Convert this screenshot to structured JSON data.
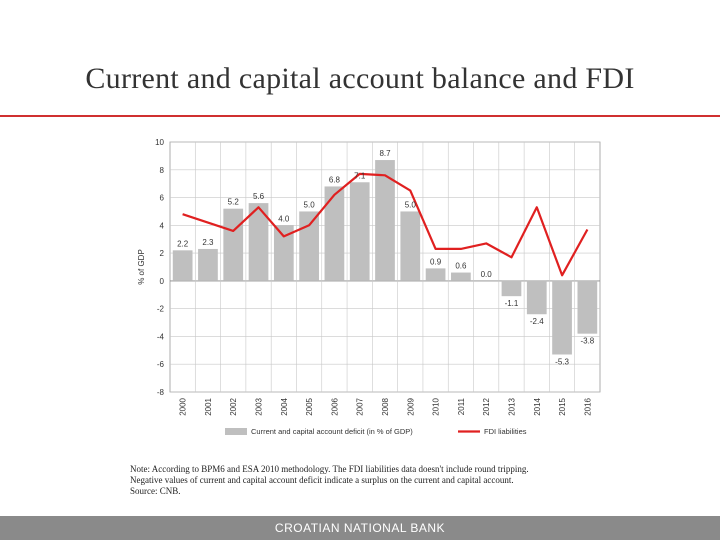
{
  "slide": {
    "title": "Current and capital account balance and FDI",
    "footer": "CROATIAN NATIONAL BANK"
  },
  "notes": [
    "Note: According to BPM6 and ESA 2010 methodology. The FDI liabilities data doesn't include round tripping.",
    "Negative values of current and capital account deficit indicate a surplus on the current and capital account.",
    "Source: CNB."
  ],
  "colors": {
    "bar": "#bfbfbf",
    "line": "#e02020",
    "grid": "#c8c8c8",
    "title_rule": "#d03030",
    "footer_bg": "#8a8a8a"
  },
  "chart_data": {
    "type": "bar",
    "categories": [
      "2000",
      "2001",
      "2002",
      "2003",
      "2004",
      "2005",
      "2006",
      "2007",
      "2008",
      "2009",
      "2010",
      "2011",
      "2012",
      "2013",
      "2014",
      "2015",
      "2016"
    ],
    "ylabel": "% of GDP",
    "ylim": [
      -8,
      10
    ],
    "yticks": [
      -8,
      -6,
      -4,
      -2,
      0,
      2,
      4,
      6,
      8,
      10
    ],
    "ytick_labels": [
      "-8",
      "-6",
      "-4",
      "-2",
      "0",
      "2",
      "4",
      "6",
      "8",
      "10"
    ],
    "grid": true,
    "legend_position": "bottom",
    "series": [
      {
        "name": "Current and capital account deficit (in % of GDP)",
        "type": "bar",
        "values": [
          2.2,
          2.3,
          5.2,
          5.6,
          4.0,
          5.0,
          6.8,
          7.1,
          8.7,
          5.0,
          0.9,
          0.6,
          0.0,
          -1.1,
          -2.4,
          -5.3,
          -3.8
        ],
        "labels": [
          "2.2",
          "2.3",
          "5.2",
          "5.6",
          "4.0",
          "5.0",
          "6.8",
          "7.1",
          "8.7",
          "5.0",
          "0.9",
          "0.6",
          "0.0",
          "-1.1",
          "-2.4",
          "-5.3",
          "-3.8"
        ]
      },
      {
        "name": "FDI liabilities",
        "type": "line",
        "values": [
          4.8,
          4.2,
          3.6,
          5.3,
          3.2,
          4.0,
          6.2,
          7.7,
          7.6,
          6.5,
          2.3,
          2.3,
          2.7,
          1.7,
          5.3,
          0.4,
          3.7
        ]
      }
    ]
  }
}
